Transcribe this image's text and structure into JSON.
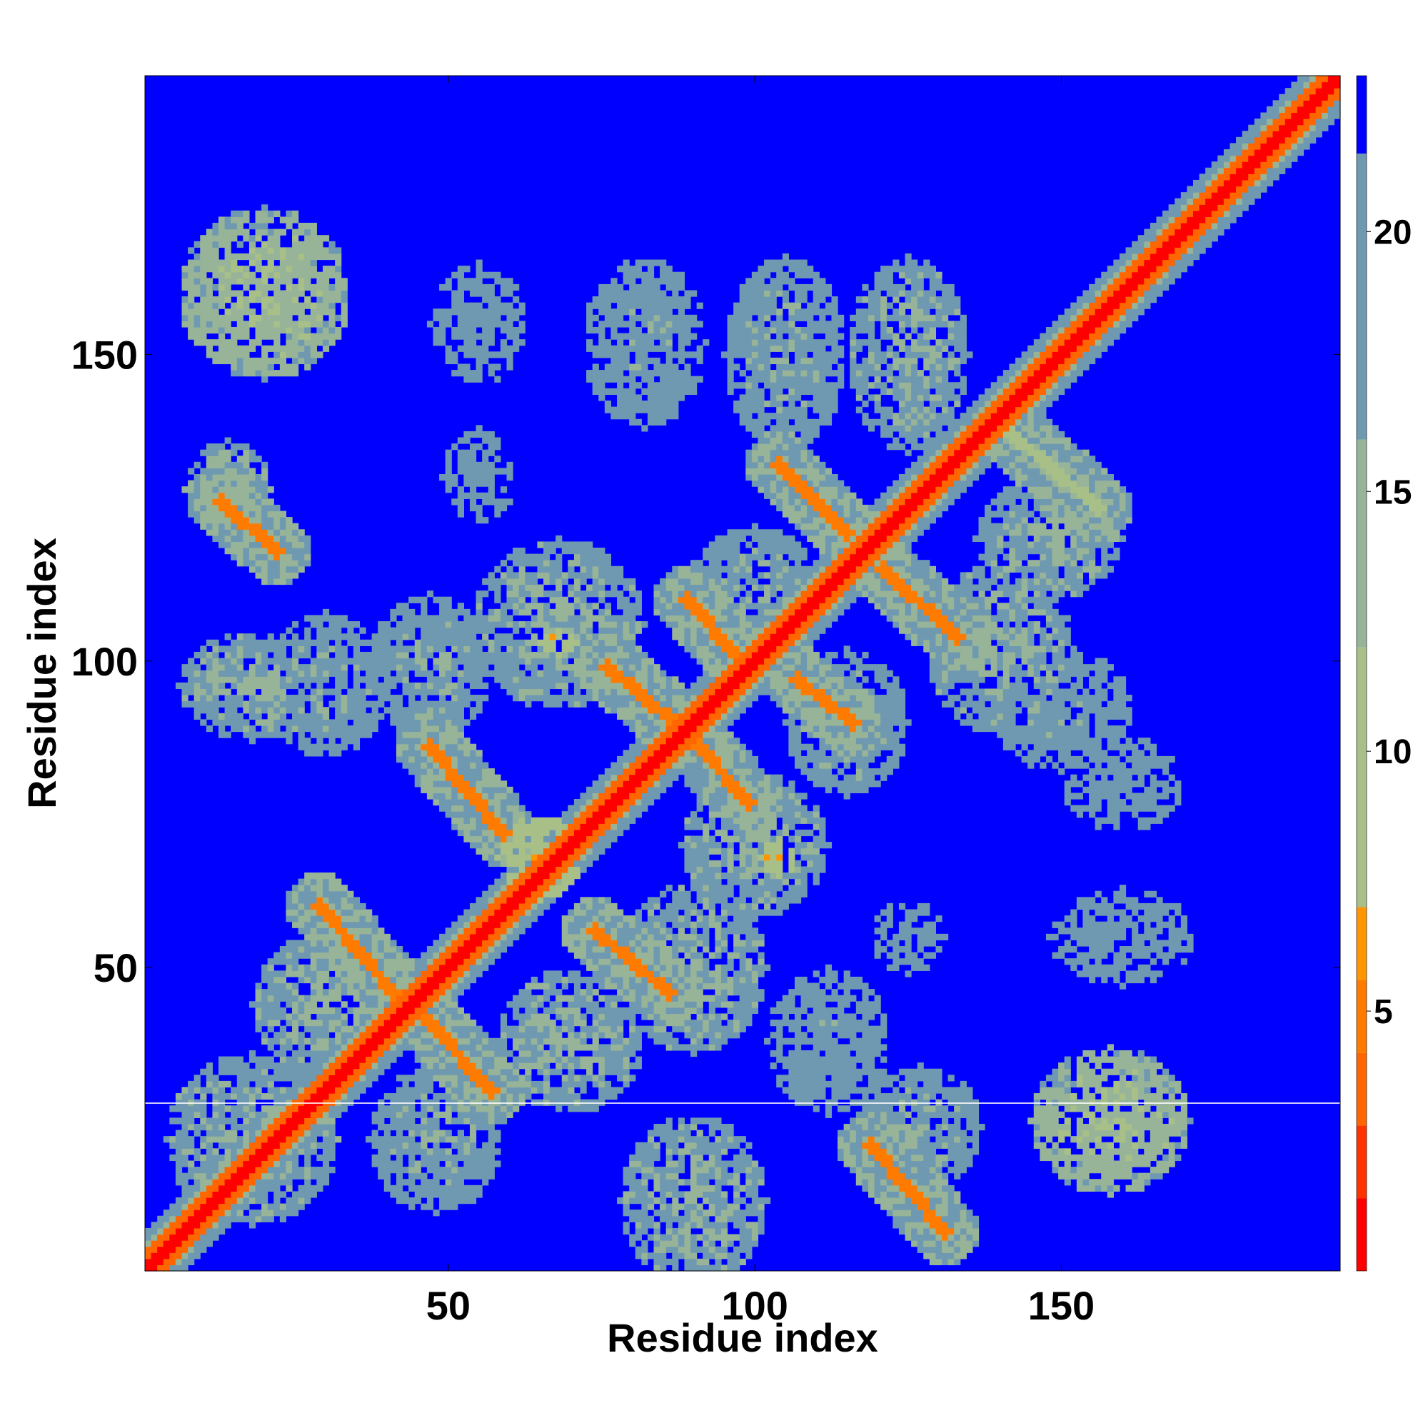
{
  "chart_data": {
    "type": "heatmap",
    "title": "",
    "xlabel": "Residue index",
    "ylabel": "Residue index",
    "xlim": [
      1,
      195
    ],
    "ylim": [
      1,
      195
    ],
    "x_ticks": [
      50,
      100,
      150
    ],
    "y_ticks": [
      50,
      100,
      150
    ],
    "x_tick_labels": [
      "50",
      "100",
      "150"
    ],
    "y_tick_labels": [
      "50",
      "100",
      "150"
    ],
    "grid": false,
    "colorbar": {
      "position": "right",
      "range": [
        0,
        23
      ],
      "ticks": [
        5,
        10,
        15,
        20
      ],
      "tick_labels": [
        "5",
        "10",
        "15",
        "20"
      ],
      "bands": [
        {
          "from": 0,
          "to": 1.4,
          "color": "#ff0000"
        },
        {
          "from": 1.4,
          "to": 2.8,
          "color": "#ff3300"
        },
        {
          "from": 2.8,
          "to": 4.2,
          "color": "#ff6600"
        },
        {
          "from": 4.2,
          "to": 5.6,
          "color": "#ff7b00"
        },
        {
          "from": 5.6,
          "to": 7.0,
          "color": "#ff9500"
        },
        {
          "from": 7.0,
          "to": 12.0,
          "color": "#a8c088"
        },
        {
          "from": 12.0,
          "to": 16.0,
          "color": "#98b498"
        },
        {
          "from": 16.0,
          "to": 21.5,
          "color": "#6f99b0"
        },
        {
          "from": 21.5,
          "to": 23.0,
          "color": "#0000ff"
        }
      ]
    },
    "background_value": 23,
    "diagonal": {
      "core_value": 1.0,
      "band_value": 3.5,
      "halo_value": 14
    },
    "features": [
      {
        "kind": "ridge",
        "from": [
          13,
          126
        ],
        "to": [
          22,
          118
        ],
        "value": 5
      },
      {
        "kind": "ridge",
        "from": [
          29,
          60
        ],
        "to": [
          42,
          45
        ],
        "value": 5
      },
      {
        "kind": "ridge",
        "from": [
          47,
          86
        ],
        "to": [
          59,
          72
        ],
        "value": 5
      },
      {
        "kind": "ridge",
        "from": [
          46,
          42
        ],
        "to": [
          57,
          30
        ],
        "value": 5
      },
      {
        "kind": "ridge",
        "from": [
          74,
          56
        ],
        "to": [
          86,
          46
        ],
        "value": 5
      },
      {
        "kind": "ridge",
        "from": [
          76,
          99
        ],
        "to": [
          87,
          90
        ],
        "value": 5
      },
      {
        "kind": "ridge",
        "from": [
          89,
          110
        ],
        "to": [
          97,
          101
        ],
        "value": 5
      },
      {
        "kind": "ridge",
        "from": [
          90,
          87
        ],
        "to": [
          99,
          77
        ],
        "value": 5
      },
      {
        "kind": "ridge",
        "from": [
          104,
          132
        ],
        "to": [
          115,
          121
        ],
        "value": 5
      },
      {
        "kind": "ridge",
        "from": [
          107,
          97
        ],
        "to": [
          116,
          90
        ],
        "value": 5
      },
      {
        "kind": "ridge",
        "from": [
          121,
          115
        ],
        "to": [
          133,
          104
        ],
        "value": 5
      },
      {
        "kind": "ridge",
        "from": [
          119,
          21
        ],
        "to": [
          131,
          7
        ],
        "value": 5
      },
      {
        "kind": "ridge",
        "from": [
          141,
          138
        ],
        "to": [
          156,
          125
        ],
        "value": 7
      },
      {
        "kind": "blob",
        "center": [
          20,
          160
        ],
        "radius": [
          14,
          14
        ],
        "value": 12
      },
      {
        "kind": "blob",
        "center": [
          158,
          25
        ],
        "radius": [
          13,
          12
        ],
        "value": 12
      },
      {
        "kind": "blob",
        "center": [
          14,
          128
        ],
        "radius": [
          7,
          8
        ],
        "value": 14
      },
      {
        "kind": "blob",
        "center": [
          18,
          96
        ],
        "radius": [
          12,
          9
        ],
        "value": 15
      },
      {
        "kind": "blob",
        "center": [
          30,
          96
        ],
        "radius": [
          10,
          12
        ],
        "value": 16
      },
      {
        "kind": "blob",
        "center": [
          47,
          99
        ],
        "radius": [
          10,
          12
        ],
        "value": 16
      },
      {
        "kind": "blob",
        "center": [
          30,
          44
        ],
        "radius": [
          12,
          12
        ],
        "value": 15
      },
      {
        "kind": "blob",
        "center": [
          18,
          22
        ],
        "radius": [
          14,
          14
        ],
        "value": 15
      },
      {
        "kind": "blob",
        "center": [
          48,
          22
        ],
        "radius": [
          11,
          12
        ],
        "value": 16
      },
      {
        "kind": "blob",
        "center": [
          70,
          38
        ],
        "radius": [
          12,
          12
        ],
        "value": 15
      },
      {
        "kind": "blob",
        "center": [
          90,
          50
        ],
        "radius": [
          12,
          14
        ],
        "value": 15
      },
      {
        "kind": "blob",
        "center": [
          90,
          12
        ],
        "radius": [
          12,
          14
        ],
        "value": 15
      },
      {
        "kind": "blob",
        "center": [
          68,
          106
        ],
        "radius": [
          14,
          14
        ],
        "value": 15
      },
      {
        "kind": "blob",
        "center": [
          100,
          110
        ],
        "radius": [
          12,
          12
        ],
        "value": 16
      },
      {
        "kind": "blob",
        "center": [
          115,
          90
        ],
        "radius": [
          10,
          12
        ],
        "value": 16
      },
      {
        "kind": "blob",
        "center": [
          140,
          102
        ],
        "radius": [
          12,
          14
        ],
        "value": 15
      },
      {
        "kind": "blob",
        "center": [
          148,
          120
        ],
        "radius": [
          12,
          10
        ],
        "value": 15
      },
      {
        "kind": "blob",
        "center": [
          150,
          92
        ],
        "radius": [
          12,
          10
        ],
        "value": 17
      },
      {
        "kind": "blob",
        "center": [
          125,
          150
        ],
        "radius": [
          10,
          16
        ],
        "value": 15
      },
      {
        "kind": "blob",
        "center": [
          105,
          150
        ],
        "radius": [
          10,
          16
        ],
        "value": 16
      },
      {
        "kind": "blob",
        "center": [
          82,
          152
        ],
        "radius": [
          10,
          14
        ],
        "value": 17
      },
      {
        "kind": "blob",
        "center": [
          55,
          155
        ],
        "radius": [
          8,
          10
        ],
        "value": 18
      },
      {
        "kind": "blob",
        "center": [
          100,
          70
        ],
        "radius": [
          12,
          12
        ],
        "value": 15
      },
      {
        "kind": "blob",
        "center": [
          112,
          38
        ],
        "radius": [
          10,
          12
        ],
        "value": 17
      },
      {
        "kind": "blob",
        "center": [
          127,
          24
        ],
        "radius": [
          10,
          10
        ],
        "value": 16
      },
      {
        "kind": "blob",
        "center": [
          125,
          55
        ],
        "radius": [
          6,
          6
        ],
        "value": 18
      },
      {
        "kind": "blob",
        "center": [
          160,
          55
        ],
        "radius": [
          12,
          8
        ],
        "value": 18
      },
      {
        "kind": "blob",
        "center": [
          160,
          80
        ],
        "radius": [
          10,
          8
        ],
        "value": 18
      },
      {
        "kind": "blob",
        "center": [
          55,
          130
        ],
        "radius": [
          6,
          8
        ],
        "value": 18
      },
      {
        "kind": "blob",
        "center": [
          65,
          68
        ],
        "radius": [
          7,
          7
        ],
        "value": 7
      },
      {
        "kind": "blob",
        "center": [
          104,
          68
        ],
        "radius": [
          3,
          3
        ],
        "value": 7
      },
      {
        "kind": "blob",
        "center": [
          68,
          103
        ],
        "radius": [
          3,
          2
        ],
        "value": 7
      }
    ]
  }
}
